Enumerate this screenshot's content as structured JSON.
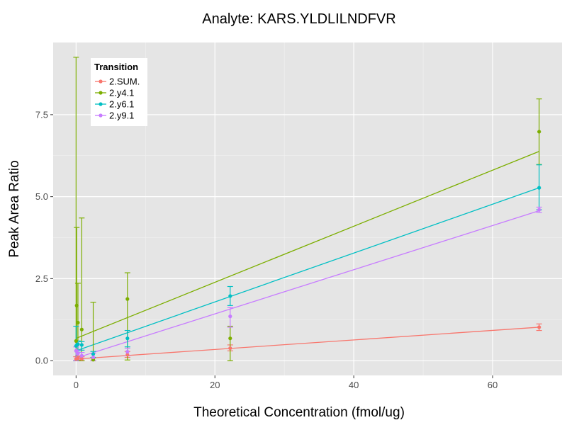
{
  "chart_data": {
    "type": "scatter",
    "title": "Analyte: KARS.YLDLILNDFVR",
    "xlabel": "Theoretical Concentration (fmol/ug)",
    "ylabel": "Peak Area Ratio",
    "xlim": [
      -3.3,
      70
    ],
    "ylim": [
      -0.45,
      9.7
    ],
    "x_ticks": [
      0,
      20,
      40,
      60
    ],
    "x_tick_labels": [
      "0",
      "20",
      "40",
      "60"
    ],
    "y_ticks": [
      0,
      2.5,
      5,
      7.5
    ],
    "y_tick_labels": [
      "0.0",
      "2.5",
      "5.0",
      "7.5"
    ],
    "grid": true,
    "legend_title": "Transition",
    "legend_position": "top-left",
    "series": [
      {
        "name": "2.SUM.",
        "color": "#F8766D",
        "points": [
          {
            "x": 0,
            "y": 0.05,
            "lo": 0.0,
            "hi": 0.12
          },
          {
            "x": 0.27,
            "y": 0.08,
            "lo": 0.02,
            "hi": 0.15
          },
          {
            "x": 0.82,
            "y": 0.06,
            "lo": 0.0,
            "hi": 0.12
          },
          {
            "x": 2.47,
            "y": 0.04,
            "lo": 0.0,
            "hi": 0.08
          },
          {
            "x": 7.4,
            "y": 0.18,
            "lo": 0.1,
            "hi": 0.28
          },
          {
            "x": 22.2,
            "y": 0.38,
            "lo": 0.3,
            "hi": 0.48
          },
          {
            "x": 66.7,
            "y": 1.02,
            "lo": 0.92,
            "hi": 1.12
          }
        ],
        "fit": {
          "x0": 0,
          "y0": 0.05,
          "x1": 66.7,
          "y1": 1.02
        }
      },
      {
        "name": "2.y4.1",
        "color": "#7CAE00",
        "points": [
          {
            "x": 0,
            "y": 0.6,
            "lo": 0.0,
            "hi": 9.25
          },
          {
            "x": 0.09,
            "y": 1.68,
            "lo": 0.0,
            "hi": 4.06
          },
          {
            "x": 0.27,
            "y": 1.16,
            "lo": 0.0,
            "hi": 2.36
          },
          {
            "x": 0.82,
            "y": 0.95,
            "lo": 0.0,
            "hi": 4.35
          },
          {
            "x": 2.47,
            "y": 0.03,
            "lo": 0.0,
            "hi": 1.78
          },
          {
            "x": 7.4,
            "y": 1.88,
            "lo": 0.02,
            "hi": 2.68
          },
          {
            "x": 22.2,
            "y": 0.68,
            "lo": 0.0,
            "hi": 1.05
          },
          {
            "x": 66.7,
            "y": 6.98,
            "lo": 5.98,
            "hi": 7.98
          }
        ],
        "fit": {
          "x0": 0,
          "y0": 0.68,
          "x1": 66.7,
          "y1": 6.38
        }
      },
      {
        "name": "2.y6.1",
        "color": "#00BFC4",
        "points": [
          {
            "x": 0,
            "y": 0.45,
            "lo": 0.0,
            "hi": 1.05
          },
          {
            "x": 0.27,
            "y": 0.5,
            "lo": 0.3,
            "hi": 0.6
          },
          {
            "x": 0.82,
            "y": 0.48,
            "lo": 0.32,
            "hi": 0.58
          },
          {
            "x": 2.47,
            "y": 0.2,
            "lo": 0.1,
            "hi": 0.28
          },
          {
            "x": 7.4,
            "y": 0.68,
            "lo": 0.42,
            "hi": 0.92
          },
          {
            "x": 22.2,
            "y": 1.97,
            "lo": 1.68,
            "hi": 2.26
          },
          {
            "x": 66.7,
            "y": 5.27,
            "lo": 4.6,
            "hi": 5.97
          }
        ],
        "fit": {
          "x0": 0,
          "y0": 0.3,
          "x1": 66.7,
          "y1": 5.27
        }
      },
      {
        "name": "2.y9.1",
        "color": "#C77CFF",
        "points": [
          {
            "x": 0,
            "y": 0.3,
            "lo": 0.0,
            "hi": 0.42
          },
          {
            "x": 0.27,
            "y": 0.22,
            "lo": 0.1,
            "hi": 0.32
          },
          {
            "x": 0.82,
            "y": 0.15,
            "lo": 0.05,
            "hi": 0.25
          },
          {
            "x": 2.47,
            "y": 0.1,
            "lo": 0.0,
            "hi": 0.22
          },
          {
            "x": 7.4,
            "y": 0.27,
            "lo": 0.15,
            "hi": 0.38
          },
          {
            "x": 22.2,
            "y": 1.35,
            "lo": 1.02,
            "hi": 1.62
          },
          {
            "x": 66.7,
            "y": 4.6,
            "lo": 4.52,
            "hi": 4.68
          }
        ],
        "fit": {
          "x0": 0,
          "y0": 0.08,
          "x1": 66.7,
          "y1": 4.57
        }
      }
    ]
  }
}
